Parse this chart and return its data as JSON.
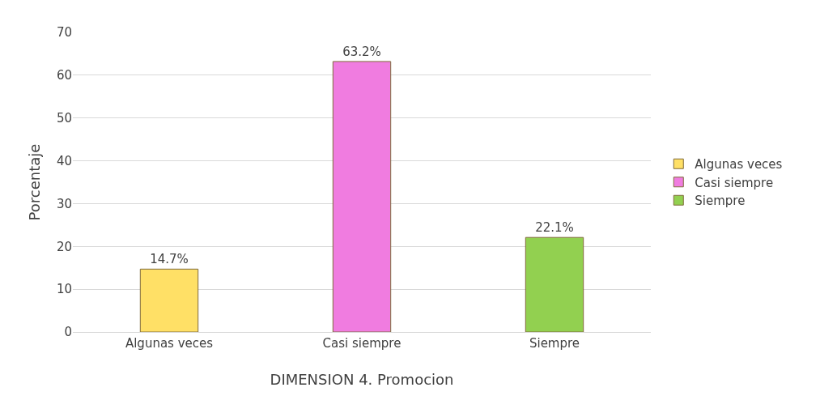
{
  "chart_data": {
    "type": "bar",
    "categories": [
      "Algunas veces",
      "Casi siempre",
      "Siempre"
    ],
    "series": [
      {
        "name": "Algunas veces",
        "color": "#ffe066",
        "values": [
          14.7,
          null,
          null
        ],
        "value_labels": [
          "14.7%",
          null,
          null
        ]
      },
      {
        "name": "Casi siempre",
        "color": "#f07ce0",
        "values": [
          null,
          63.2,
          null
        ],
        "value_labels": [
          null,
          "63.2%",
          null
        ]
      },
      {
        "name": "Siempre",
        "color": "#92d050",
        "values": [
          null,
          null,
          22.1
        ],
        "value_labels": [
          null,
          null,
          "22.1%"
        ]
      }
    ],
    "xlabel": "DIMENSION 4. Promocion",
    "ylabel": "Porcentaje",
    "ylim": [
      0,
      70
    ],
    "yticks": [
      0,
      10,
      20,
      30,
      40,
      50,
      60,
      70
    ],
    "grid": "y",
    "legend": "right"
  }
}
